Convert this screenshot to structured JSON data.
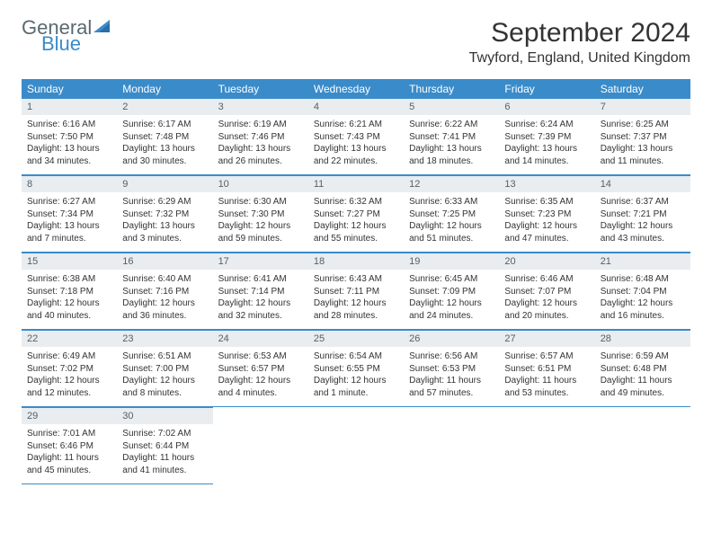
{
  "logo": {
    "line1": "General",
    "line2": "Blue"
  },
  "title": "September 2024",
  "location": "Twyford, England, United Kingdom",
  "colors": {
    "header_bg": "#3a8bc9",
    "header_text": "#ffffff",
    "day_header_bg": "#e9edf0",
    "day_header_text": "#556068",
    "border": "#3a8bc9",
    "body_text": "#333333",
    "logo_gray": "#5a6a72",
    "logo_blue": "#3a8bc9"
  },
  "weekdays": [
    "Sunday",
    "Monday",
    "Tuesday",
    "Wednesday",
    "Thursday",
    "Friday",
    "Saturday"
  ],
  "weeks": [
    [
      {
        "n": "1",
        "sunrise": "Sunrise: 6:16 AM",
        "sunset": "Sunset: 7:50 PM",
        "daylight": "Daylight: 13 hours and 34 minutes."
      },
      {
        "n": "2",
        "sunrise": "Sunrise: 6:17 AM",
        "sunset": "Sunset: 7:48 PM",
        "daylight": "Daylight: 13 hours and 30 minutes."
      },
      {
        "n": "3",
        "sunrise": "Sunrise: 6:19 AM",
        "sunset": "Sunset: 7:46 PM",
        "daylight": "Daylight: 13 hours and 26 minutes."
      },
      {
        "n": "4",
        "sunrise": "Sunrise: 6:21 AM",
        "sunset": "Sunset: 7:43 PM",
        "daylight": "Daylight: 13 hours and 22 minutes."
      },
      {
        "n": "5",
        "sunrise": "Sunrise: 6:22 AM",
        "sunset": "Sunset: 7:41 PM",
        "daylight": "Daylight: 13 hours and 18 minutes."
      },
      {
        "n": "6",
        "sunrise": "Sunrise: 6:24 AM",
        "sunset": "Sunset: 7:39 PM",
        "daylight": "Daylight: 13 hours and 14 minutes."
      },
      {
        "n": "7",
        "sunrise": "Sunrise: 6:25 AM",
        "sunset": "Sunset: 7:37 PM",
        "daylight": "Daylight: 13 hours and 11 minutes."
      }
    ],
    [
      {
        "n": "8",
        "sunrise": "Sunrise: 6:27 AM",
        "sunset": "Sunset: 7:34 PM",
        "daylight": "Daylight: 13 hours and 7 minutes."
      },
      {
        "n": "9",
        "sunrise": "Sunrise: 6:29 AM",
        "sunset": "Sunset: 7:32 PM",
        "daylight": "Daylight: 13 hours and 3 minutes."
      },
      {
        "n": "10",
        "sunrise": "Sunrise: 6:30 AM",
        "sunset": "Sunset: 7:30 PM",
        "daylight": "Daylight: 12 hours and 59 minutes."
      },
      {
        "n": "11",
        "sunrise": "Sunrise: 6:32 AM",
        "sunset": "Sunset: 7:27 PM",
        "daylight": "Daylight: 12 hours and 55 minutes."
      },
      {
        "n": "12",
        "sunrise": "Sunrise: 6:33 AM",
        "sunset": "Sunset: 7:25 PM",
        "daylight": "Daylight: 12 hours and 51 minutes."
      },
      {
        "n": "13",
        "sunrise": "Sunrise: 6:35 AM",
        "sunset": "Sunset: 7:23 PM",
        "daylight": "Daylight: 12 hours and 47 minutes."
      },
      {
        "n": "14",
        "sunrise": "Sunrise: 6:37 AM",
        "sunset": "Sunset: 7:21 PM",
        "daylight": "Daylight: 12 hours and 43 minutes."
      }
    ],
    [
      {
        "n": "15",
        "sunrise": "Sunrise: 6:38 AM",
        "sunset": "Sunset: 7:18 PM",
        "daylight": "Daylight: 12 hours and 40 minutes."
      },
      {
        "n": "16",
        "sunrise": "Sunrise: 6:40 AM",
        "sunset": "Sunset: 7:16 PM",
        "daylight": "Daylight: 12 hours and 36 minutes."
      },
      {
        "n": "17",
        "sunrise": "Sunrise: 6:41 AM",
        "sunset": "Sunset: 7:14 PM",
        "daylight": "Daylight: 12 hours and 32 minutes."
      },
      {
        "n": "18",
        "sunrise": "Sunrise: 6:43 AM",
        "sunset": "Sunset: 7:11 PM",
        "daylight": "Daylight: 12 hours and 28 minutes."
      },
      {
        "n": "19",
        "sunrise": "Sunrise: 6:45 AM",
        "sunset": "Sunset: 7:09 PM",
        "daylight": "Daylight: 12 hours and 24 minutes."
      },
      {
        "n": "20",
        "sunrise": "Sunrise: 6:46 AM",
        "sunset": "Sunset: 7:07 PM",
        "daylight": "Daylight: 12 hours and 20 minutes."
      },
      {
        "n": "21",
        "sunrise": "Sunrise: 6:48 AM",
        "sunset": "Sunset: 7:04 PM",
        "daylight": "Daylight: 12 hours and 16 minutes."
      }
    ],
    [
      {
        "n": "22",
        "sunrise": "Sunrise: 6:49 AM",
        "sunset": "Sunset: 7:02 PM",
        "daylight": "Daylight: 12 hours and 12 minutes."
      },
      {
        "n": "23",
        "sunrise": "Sunrise: 6:51 AM",
        "sunset": "Sunset: 7:00 PM",
        "daylight": "Daylight: 12 hours and 8 minutes."
      },
      {
        "n": "24",
        "sunrise": "Sunrise: 6:53 AM",
        "sunset": "Sunset: 6:57 PM",
        "daylight": "Daylight: 12 hours and 4 minutes."
      },
      {
        "n": "25",
        "sunrise": "Sunrise: 6:54 AM",
        "sunset": "Sunset: 6:55 PM",
        "daylight": "Daylight: 12 hours and 1 minute."
      },
      {
        "n": "26",
        "sunrise": "Sunrise: 6:56 AM",
        "sunset": "Sunset: 6:53 PM",
        "daylight": "Daylight: 11 hours and 57 minutes."
      },
      {
        "n": "27",
        "sunrise": "Sunrise: 6:57 AM",
        "sunset": "Sunset: 6:51 PM",
        "daylight": "Daylight: 11 hours and 53 minutes."
      },
      {
        "n": "28",
        "sunrise": "Sunrise: 6:59 AM",
        "sunset": "Sunset: 6:48 PM",
        "daylight": "Daylight: 11 hours and 49 minutes."
      }
    ],
    [
      {
        "n": "29",
        "sunrise": "Sunrise: 7:01 AM",
        "sunset": "Sunset: 6:46 PM",
        "daylight": "Daylight: 11 hours and 45 minutes."
      },
      {
        "n": "30",
        "sunrise": "Sunrise: 7:02 AM",
        "sunset": "Sunset: 6:44 PM",
        "daylight": "Daylight: 11 hours and 41 minutes."
      },
      null,
      null,
      null,
      null,
      null
    ]
  ]
}
